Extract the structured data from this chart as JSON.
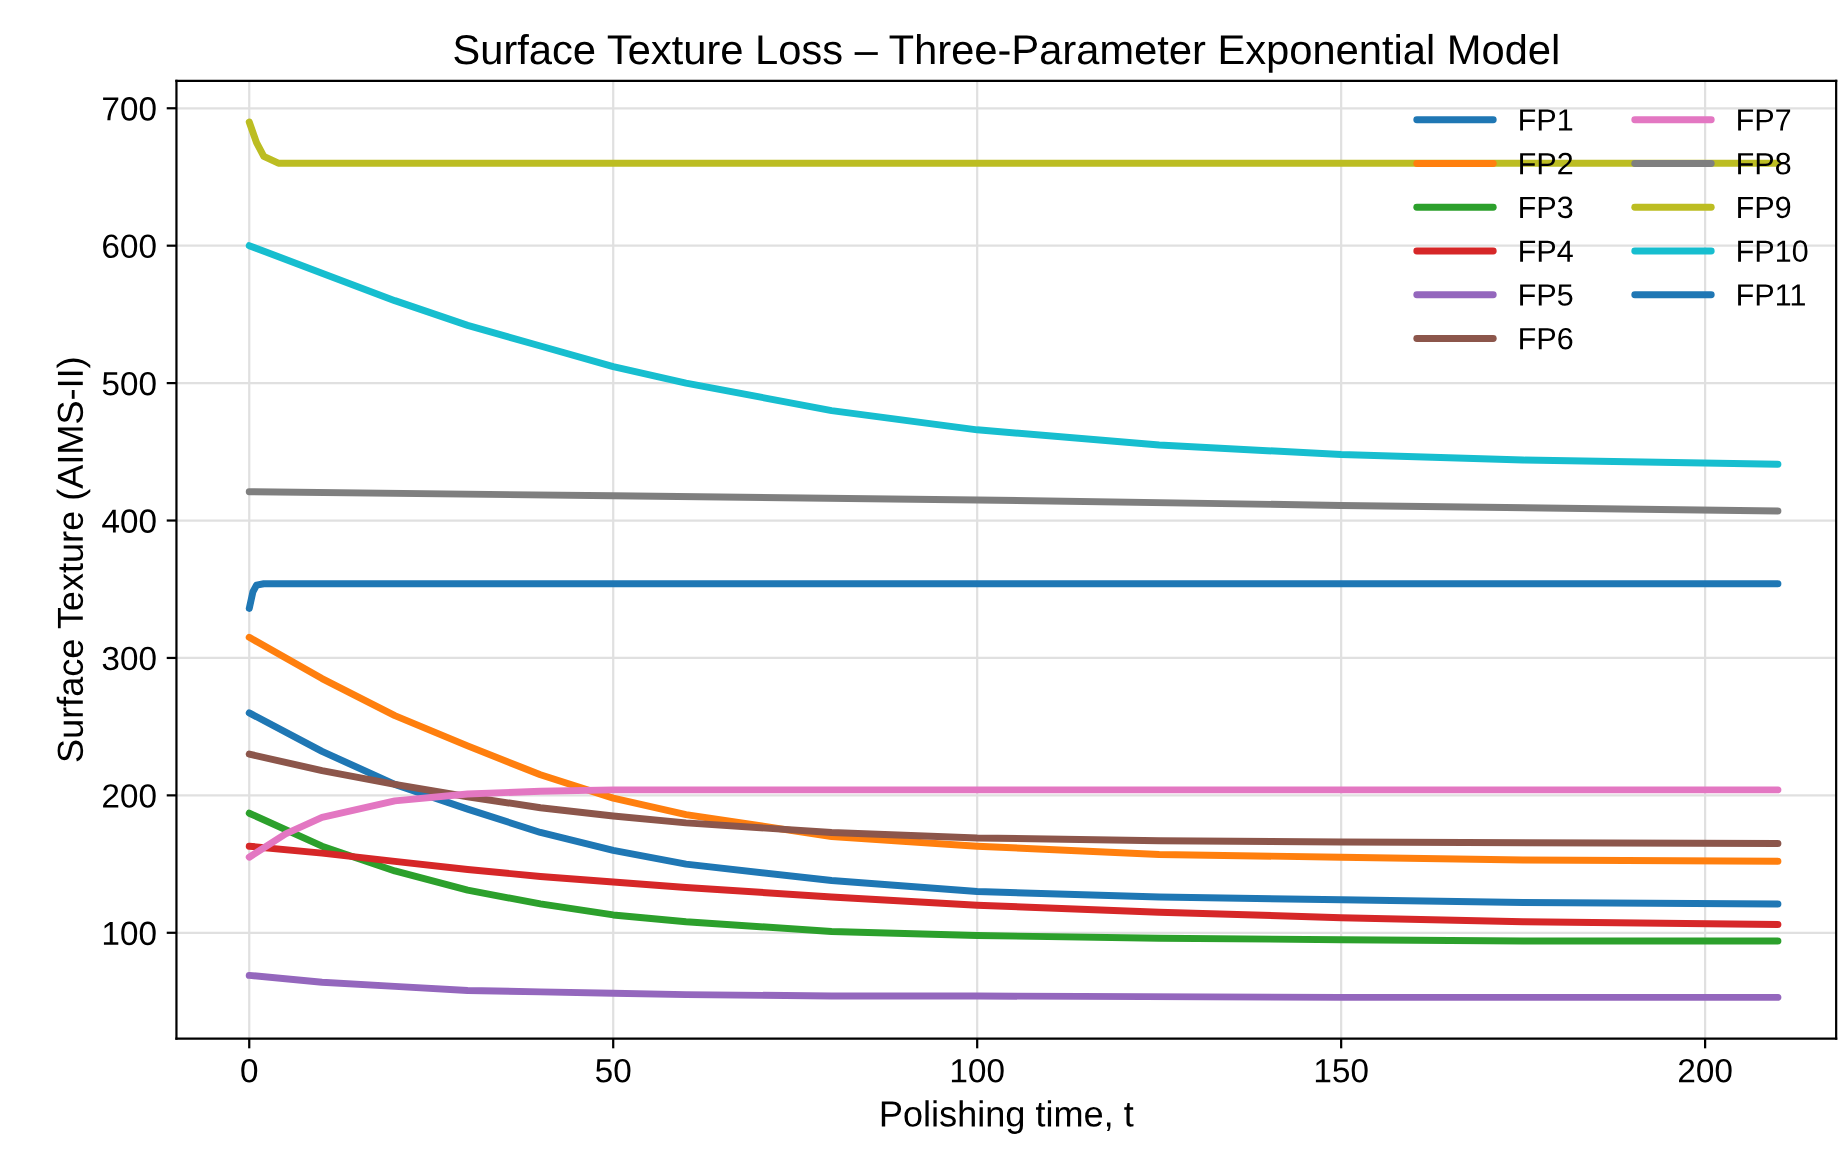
{
  "chart_data": {
    "type": "line",
    "title": "Surface Texture Loss – Three-Parameter Exponential Model",
    "xlabel": "Polishing time, t",
    "ylabel": "Surface Texture (AIMS-II)",
    "xlim": [
      -10,
      218
    ],
    "xticks": [
      0,
      50,
      100,
      150,
      200
    ],
    "ylim": [
      23,
      720
    ],
    "yticks": [
      100,
      200,
      300,
      400,
      500,
      600,
      700
    ],
    "grid": true,
    "legend": "top right",
    "line_style": "solid",
    "marker": "none",
    "series": [
      {
        "name": "FP1",
        "color": "#1f77b4",
        "x": [
          0,
          10,
          20,
          30,
          40,
          50,
          60,
          80,
          100,
          125,
          150,
          175,
          210
        ],
        "values": [
          260,
          232,
          208,
          190,
          173,
          160,
          150,
          138,
          130,
          126,
          124,
          122,
          121
        ]
      },
      {
        "name": "FP2",
        "color": "#ff7f0e",
        "x": [
          0,
          10,
          20,
          30,
          40,
          50,
          60,
          80,
          100,
          125,
          150,
          175,
          210
        ],
        "values": [
          315,
          285,
          258,
          236,
          215,
          198,
          186,
          170,
          163,
          157,
          155,
          153,
          152
        ]
      },
      {
        "name": "FP3",
        "color": "#2ca02c",
        "x": [
          0,
          10,
          20,
          30,
          40,
          50,
          60,
          80,
          100,
          125,
          150,
          175,
          210
        ],
        "values": [
          187,
          163,
          145,
          131,
          121,
          113,
          108,
          101,
          98,
          96,
          95,
          94,
          94
        ]
      },
      {
        "name": "FP4",
        "color": "#d62728",
        "x": [
          0,
          10,
          20,
          30,
          40,
          50,
          60,
          80,
          100,
          125,
          150,
          175,
          210
        ],
        "values": [
          163,
          158,
          152,
          146,
          141,
          137,
          133,
          126,
          120,
          115,
          111,
          108,
          106
        ]
      },
      {
        "name": "FP5",
        "color": "#9467bd",
        "x": [
          0,
          10,
          20,
          30,
          40,
          50,
          60,
          80,
          100,
          150,
          210
        ],
        "values": [
          69,
          64,
          61,
          58,
          57,
          56,
          55,
          54,
          54,
          53,
          53
        ]
      },
      {
        "name": "FP6",
        "color": "#8c564b",
        "x": [
          0,
          10,
          20,
          30,
          40,
          50,
          60,
          80,
          100,
          125,
          150,
          210
        ],
        "values": [
          230,
          218,
          208,
          199,
          191,
          185,
          180,
          173,
          169,
          167,
          166,
          165
        ]
      },
      {
        "name": "FP7",
        "color": "#e377c2",
        "x": [
          0,
          5,
          10,
          20,
          30,
          40,
          50,
          100,
          210
        ],
        "values": [
          155,
          172,
          184,
          196,
          201,
          203,
          204,
          204,
          204
        ]
      },
      {
        "name": "FP8",
        "color": "#7f7f7f",
        "x": [
          0,
          50,
          100,
          150,
          210
        ],
        "values": [
          421,
          418,
          415,
          411,
          407
        ]
      },
      {
        "name": "FP9",
        "color": "#bcbd22",
        "x": [
          0,
          1,
          2,
          4,
          210
        ],
        "values": [
          690,
          675,
          665,
          660,
          660
        ]
      },
      {
        "name": "FP10",
        "color": "#17becf",
        "x": [
          0,
          10,
          20,
          30,
          40,
          50,
          60,
          80,
          100,
          125,
          150,
          175,
          210
        ],
        "values": [
          600,
          580,
          560,
          542,
          527,
          512,
          500,
          480,
          466,
          455,
          448,
          444,
          441
        ]
      },
      {
        "name": "FP11",
        "color": "#1f77b4",
        "x": [
          0,
          0.5,
          1,
          2,
          210
        ],
        "values": [
          336,
          348,
          353,
          354,
          354
        ]
      }
    ]
  }
}
